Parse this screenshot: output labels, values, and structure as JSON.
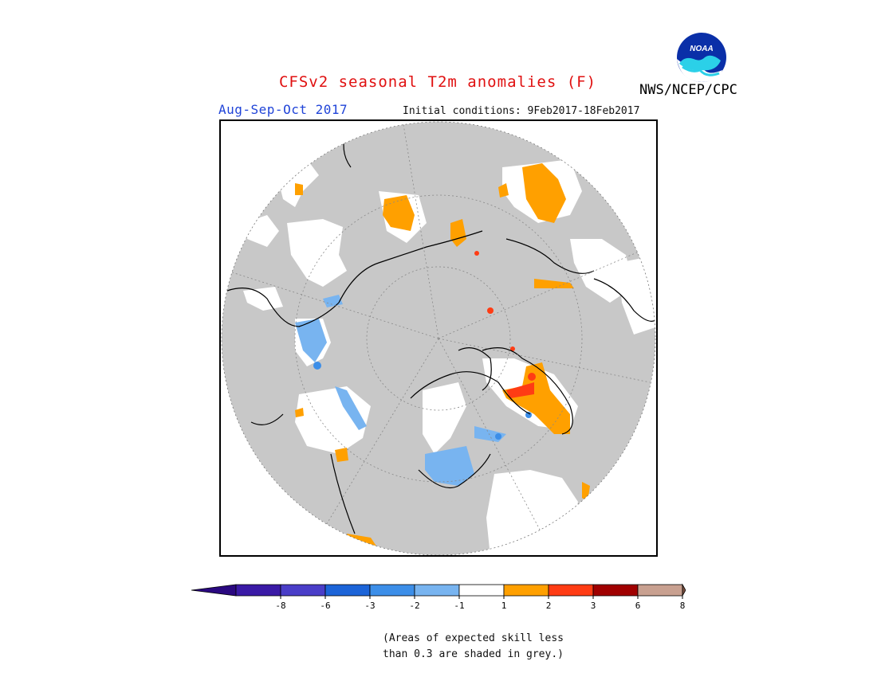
{
  "title": "CFSv2 seasonal T2m anomalies (F)",
  "period": "Aug-Sep-Oct 2017",
  "initial_conditions": "Initial conditions: 9Feb2017-18Feb2017",
  "agency": "NWS/NCEP/CPC",
  "logo": {
    "text": "NOAA",
    "icon": "noaa-logo-icon"
  },
  "colorbar": {
    "ticks": [
      "-8",
      "-6",
      "-3",
      "-2",
      "-1",
      "1",
      "2",
      "3",
      "6",
      "8"
    ],
    "colors": [
      "#3a1aa6",
      "#4a3ec8",
      "#1c64d8",
      "#3c8ee8",
      "#78b4f0",
      "#ffffff",
      "#ffa000",
      "#ff3c14",
      "#a00000",
      "#c8a090"
    ],
    "under_color": "#2a0880",
    "over_color": "#7a5040"
  },
  "note_lines": [
    "(Areas of expected skill less",
    "than 0.3 are shaded in grey.)"
  ],
  "colors": {
    "grey_shade": "#c8c8c8",
    "title": "#e01010",
    "period": "#2044d8"
  }
}
